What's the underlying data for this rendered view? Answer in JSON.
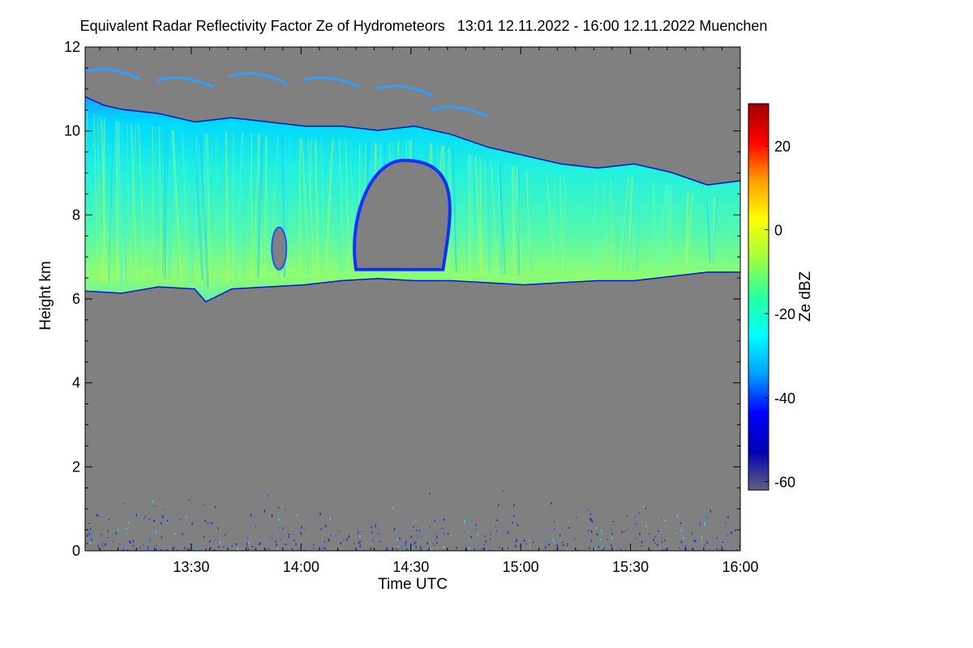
{
  "chart_data": {
    "type": "heatmap",
    "title": "Equivalent Radar Reflectivity Factor Ze of Hydrometeors   13:01 12.11.2022 - 16:00 12.11.2022 Muenchen",
    "xlabel": "Time UTC",
    "ylabel": "Height km",
    "x_range": [
      "13:01",
      "16:00"
    ],
    "x_ticks": [
      "13:30",
      "14:00",
      "14:30",
      "15:00",
      "15:30",
      "16:00"
    ],
    "x_tick_minutes": [
      29,
      59,
      89,
      119,
      149,
      179
    ],
    "x_minutes_total": 179,
    "ylim": [
      0,
      12
    ],
    "y_ticks": [
      0,
      2,
      4,
      6,
      8,
      10,
      12
    ],
    "background_color": "#808080",
    "colorbar": {
      "label": "Ze dBZ",
      "range": [
        -62,
        30
      ],
      "ticks": [
        -60,
        -40,
        -20,
        0,
        20
      ],
      "colormap": [
        "#606080",
        "#0000b4",
        "#0000ff",
        "#00a0ff",
        "#00ffff",
        "#28ffa0",
        "#a0ff40",
        "#ffff00",
        "#ffa000",
        "#ff0000",
        "#a00000"
      ]
    },
    "cloud": {
      "description_layers": "ice cloud layer",
      "base_km": [
        [
          0,
          6.2
        ],
        [
          10,
          6.15
        ],
        [
          20,
          6.3
        ],
        [
          30,
          6.25
        ],
        [
          33,
          5.95
        ],
        [
          40,
          6.25
        ],
        [
          50,
          6.3
        ],
        [
          60,
          6.35
        ],
        [
          70,
          6.45
        ],
        [
          80,
          6.5
        ],
        [
          90,
          6.45
        ],
        [
          100,
          6.45
        ],
        [
          110,
          6.4
        ],
        [
          120,
          6.35
        ],
        [
          130,
          6.4
        ],
        [
          140,
          6.45
        ],
        [
          150,
          6.45
        ],
        [
          160,
          6.55
        ],
        [
          170,
          6.65
        ],
        [
          179,
          6.65
        ]
      ],
      "top_km": [
        [
          0,
          10.8
        ],
        [
          5,
          10.6
        ],
        [
          10,
          10.5
        ],
        [
          20,
          10.4
        ],
        [
          30,
          10.2
        ],
        [
          40,
          10.3
        ],
        [
          50,
          10.2
        ],
        [
          60,
          10.1
        ],
        [
          70,
          10.1
        ],
        [
          80,
          10.0
        ],
        [
          90,
          10.1
        ],
        [
          100,
          9.9
        ],
        [
          110,
          9.6
        ],
        [
          120,
          9.4
        ],
        [
          130,
          9.2
        ],
        [
          140,
          9.1
        ],
        [
          150,
          9.2
        ],
        [
          160,
          9.0
        ],
        [
          170,
          8.7
        ],
        [
          179,
          8.8
        ]
      ],
      "gap": {
        "time_minutes": [
          74,
          100
        ],
        "height_km": [
          6.7,
          9.3
        ]
      },
      "upper_wisps_km": [
        [
          5,
          11.4
        ],
        [
          25,
          11.2
        ],
        [
          45,
          11.3
        ],
        [
          65,
          11.2
        ],
        [
          85,
          11.0
        ],
        [
          100,
          10.5
        ]
      ],
      "peak_ze_dbz": -10
    }
  }
}
